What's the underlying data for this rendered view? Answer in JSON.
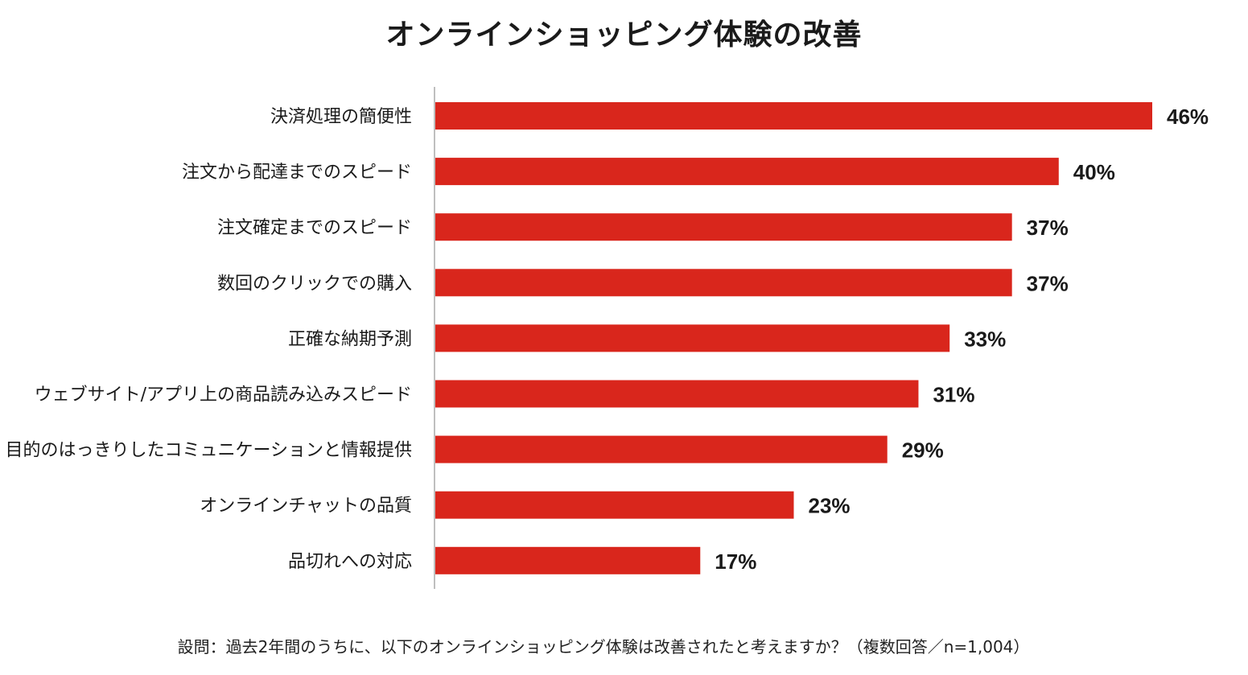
{
  "chart_data": {
    "type": "bar",
    "orientation": "horizontal",
    "title": "オンラインショッピング体験の改善",
    "categories": [
      "決済処理の簡便性",
      "注文から配達までのスピード",
      "注文確定までのスピード",
      "数回のクリックでの購入",
      "正確な納期予測",
      "ウェブサイト/アプリ上の商品読み込みスピード",
      "目的のはっきりしたコミュニケーションと情報提供",
      "オンラインチャットの品質",
      "品切れへの対応"
    ],
    "values": [
      46,
      40,
      37,
      37,
      33,
      31,
      29,
      23,
      17
    ],
    "labels": [
      "46%",
      "40%",
      "37%",
      "37%",
      "33%",
      "31%",
      "29%",
      "23%",
      "17%"
    ],
    "unit": "%",
    "xlim": [
      0,
      46
    ],
    "grid": false,
    "bar_color": "#d9261c",
    "axis_color": "#bfbfbf"
  },
  "footnote": "設問：過去2年間のうちに、以下のオンラインショッピング体験は改善されたと考えますか？（複数回答／n=1,004）"
}
